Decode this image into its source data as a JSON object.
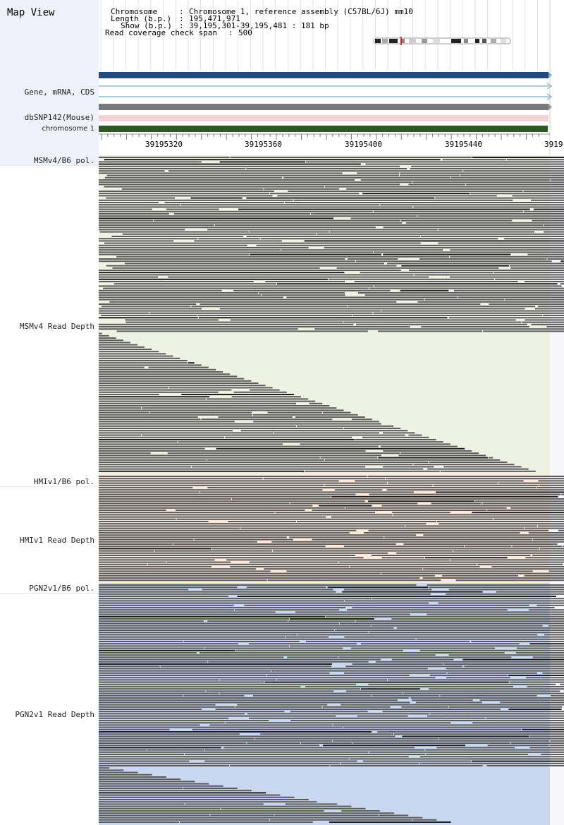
{
  "title": "Map View",
  "info": {
    "chromosome_key": "Chromosome",
    "chromosome_value": "Chromosome 1, reference assembly (C57BL/6J) mm10",
    "length_key": "Length (b.p.)",
    "length_value": "195,471,971",
    "show_key": "Show (b.p.)",
    "show_value": "39,195,301-39,195,481 : 181 bp",
    "coverage_key": "Read coverage check span",
    "coverage_value": "500"
  },
  "tracks": {
    "gene": "Gene, mRNA, CDS",
    "dbsnp": "dbSNP142(Mouse)",
    "chromosome": "chromosome 1",
    "msm_pol": "MSMv4/B6 pol.",
    "msm_depth": "MSMv4 Read Depth",
    "hmi_pol": "HMIv1/B6 pol.",
    "hmi_depth": "HMIv1 Read Depth",
    "pgn_pol": "PGN2v1/B6 pol.",
    "pgn_depth": "PGN2v1 Read Depth"
  },
  "axis": {
    "range": [
      39195301,
      39195481
    ],
    "tick_labels": [
      "39195320",
      "39195360",
      "39195400",
      "39195440",
      "3919"
    ]
  },
  "colors": {
    "label_bg": "#eff1fb",
    "msm_bg": "#eef2e3",
    "hmi_bg": "#fbe9dc",
    "pgn_bg": "#c9d8ef",
    "read": "#5b5b5b",
    "read_dark": "#1e1e1e",
    "gene_bar": "#204a80",
    "gene_line": "#5a9bb0",
    "snp_bar": "#f3d4d6",
    "chrom_bar": "#2d5a22",
    "gray_bar": "#7a7a7a"
  }
}
